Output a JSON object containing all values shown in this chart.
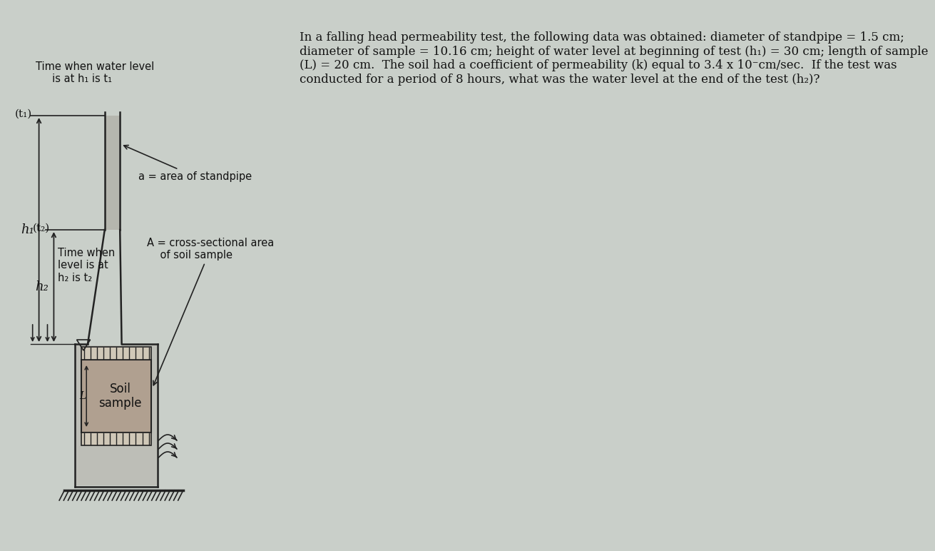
{
  "bg_color": "#c9cfc9",
  "text_color": "#111111",
  "title_text": "In a falling head permeability test, the following data was obtained: diameter of standpipe = 1.5 cm;\ndiameter of sample = 10.16 cm; height of water level at beginning of test (h₁) = 30 cm; length of sample\n(L) = 20 cm.  The soil had a coefficient of permeability (k) equal to 3.4 x 10⁻cm/sec.  If the test was\nconducted for a period of 8 hours, what was the water level at the end of the test (h₂)?",
  "label_t1_water": "Time when water level\n     is at h₁ is t₁",
  "label_t1": "(t₁)",
  "label_t2_water": "Time when\nlevel is at\nh₂ is t₂",
  "label_t2": "(t₂)",
  "label_h1": "h₁",
  "label_h2": "h₂",
  "label_a": "a = area of standpipe",
  "label_A": "A = cross-sectional area\n    of soil sample",
  "label_soil": "Soil\nsample",
  "label_L": "L",
  "pipe_wall_color": "#222222",
  "soil_color": "#b8a898",
  "gravel_color": "#a09080",
  "water_color": "#c8c8c8"
}
